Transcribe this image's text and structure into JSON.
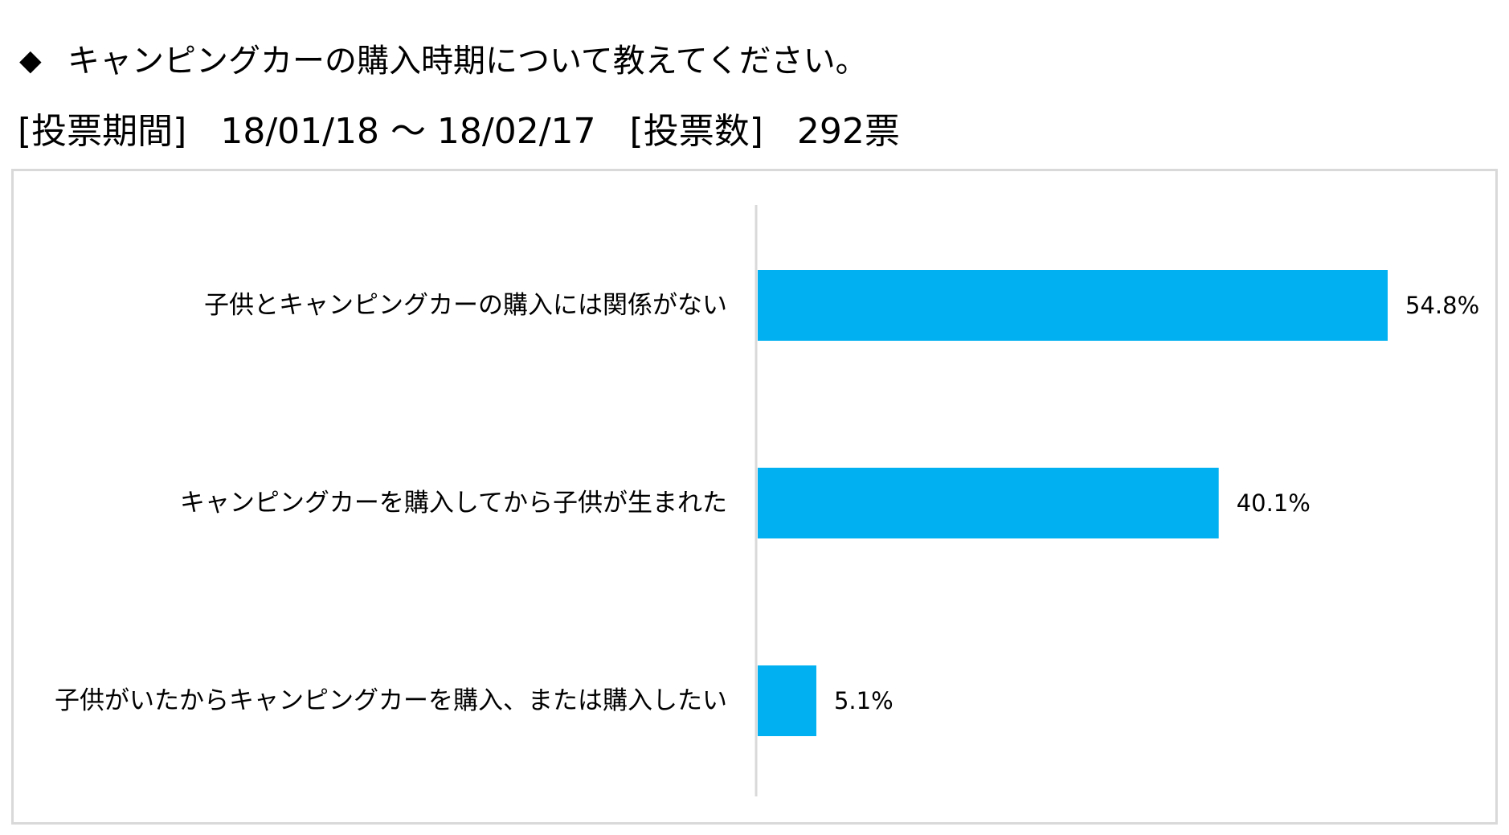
{
  "header": {
    "bullet": "◆",
    "question": "キャンピングカーの購入時期について教えてください。",
    "period_label": "[投票期間]",
    "period_value": "18/01/18 ～ 18/02/17",
    "votes_label": "[投票数]",
    "votes_value": "292票"
  },
  "chart_data": {
    "type": "bar",
    "orientation": "horizontal",
    "categories": [
      "子供とキャンピングカーの購入には関係がない",
      "キャンピングカーを購入してから子供が生まれた",
      "子供がいたからキャンピングカーを購入、または購入したい"
    ],
    "values": [
      54.8,
      40.1,
      5.1
    ],
    "data_labels": [
      "54.8%",
      "40.1%",
      "5.1%"
    ],
    "unit": "%",
    "xlim": [
      0,
      54.8
    ],
    "grid": false,
    "legend": "none",
    "bar_color": "#00b0f0",
    "axis_color": "#d9d9d9",
    "frame_color": "#d9d9d9"
  }
}
